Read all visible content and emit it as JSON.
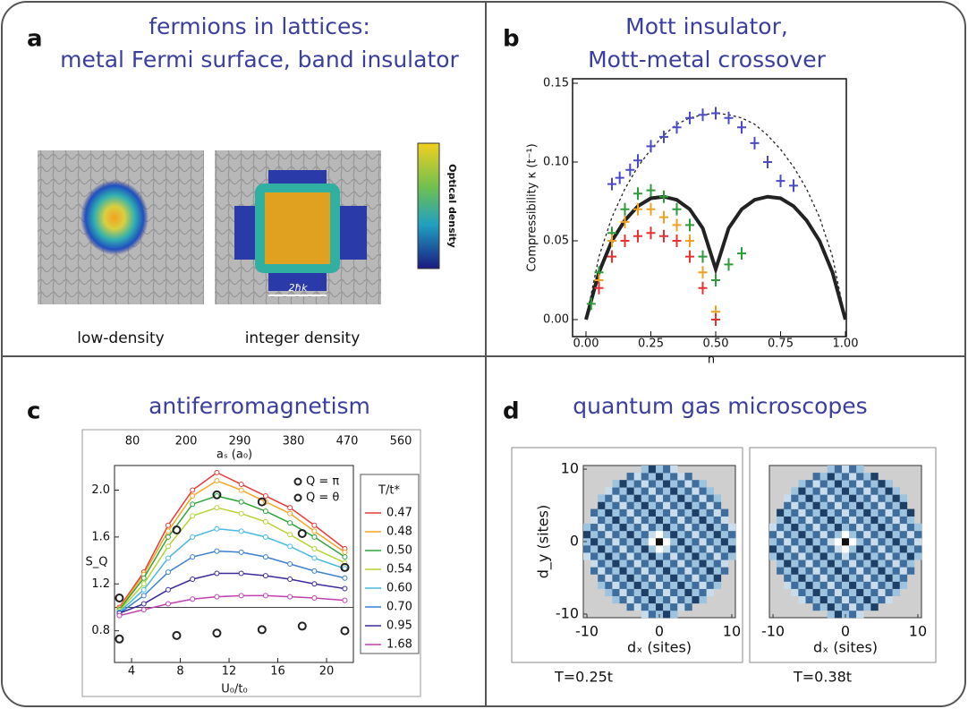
{
  "panels": [
    {
      "label": "a",
      "title": [
        "fermions in lattices:",
        "metal Fermi surface, band insulator"
      ],
      "images": [
        {
          "caption": "low-density"
        },
        {
          "caption": "integer density",
          "scale_label": "2ħk"
        }
      ],
      "colorbar_label": "Optical density"
    },
    {
      "label": "b",
      "title": [
        "Mott insulator,",
        "Mott-metal crossover"
      ],
      "chart_data": {
        "type": "line",
        "xlabel": "n",
        "ylabel": "Compressibility κ (t⁻¹)",
        "xlim": [
          0,
          1
        ],
        "ylim": [
          0,
          0.15
        ],
        "xticks": [
          {
            "value": 0,
            "label": "0.00"
          },
          {
            "value": 0.25,
            "label": "0.25"
          },
          {
            "value": 0.5,
            "label": "0.50"
          },
          {
            "value": 0.75,
            "label": "0.75"
          },
          {
            "value": 1,
            "label": "1.00"
          }
        ],
        "yticks": [
          {
            "value": 0,
            "label": "0.00"
          },
          {
            "value": 0.05,
            "label": "0.05"
          },
          {
            "value": 0.1,
            "label": "0.10"
          },
          {
            "value": 0.15,
            "label": "0.15"
          }
        ],
        "series": [
          {
            "style": "dashed",
            "color": "#222222",
            "x": [
              0,
              0.05,
              0.1,
              0.15,
              0.2,
              0.25,
              0.3,
              0.35,
              0.4,
              0.45,
              0.5,
              0.55,
              0.6,
              0.65,
              0.7,
              0.75,
              0.8,
              0.85,
              0.9,
              0.95,
              1
            ],
            "y": [
              0,
              0.04,
              0.065,
              0.083,
              0.097,
              0.108,
              0.117,
              0.124,
              0.128,
              0.13,
              0.131,
              0.13,
              0.128,
              0.124,
              0.117,
              0.108,
              0.097,
              0.083,
              0.065,
              0.04,
              0
            ]
          },
          {
            "style": "solid",
            "color": "#222222",
            "x": [
              0,
              0.05,
              0.1,
              0.15,
              0.2,
              0.25,
              0.3,
              0.35,
              0.4,
              0.45,
              0.5,
              0.55,
              0.6,
              0.65,
              0.7,
              0.75,
              0.8,
              0.85,
              0.9,
              0.95,
              1
            ],
            "y": [
              0,
              0.03,
              0.05,
              0.063,
              0.072,
              0.077,
              0.078,
              0.076,
              0.07,
              0.058,
              0.032,
              0.058,
              0.07,
              0.076,
              0.078,
              0.077,
              0.072,
              0.063,
              0.05,
              0.03,
              0
            ]
          },
          {
            "style": "markers",
            "color": "#4a4ac8",
            "x": [
              0.1,
              0.13,
              0.17,
              0.2,
              0.25,
              0.3,
              0.35,
              0.4,
              0.45,
              0.5,
              0.55,
              0.6,
              0.65,
              0.7,
              0.75,
              0.8
            ],
            "y": [
              0.086,
              0.09,
              0.095,
              0.101,
              0.11,
              0.116,
              0.122,
              0.128,
              0.13,
              0.131,
              0.128,
              0.122,
              0.112,
              0.1,
              0.088,
              0.085
            ]
          },
          {
            "style": "markers",
            "color": "#2e9a3a",
            "x": [
              0.02,
              0.05,
              0.1,
              0.15,
              0.2,
              0.25,
              0.3,
              0.35,
              0.4,
              0.45,
              0.5,
              0.55,
              0.6
            ],
            "y": [
              0.01,
              0.03,
              0.055,
              0.07,
              0.08,
              0.082,
              0.078,
              0.07,
              0.06,
              0.04,
              0.025,
              0.035,
              0.042
            ]
          },
          {
            "style": "markers",
            "color": "#f0a020",
            "x": [
              0.05,
              0.1,
              0.15,
              0.2,
              0.25,
              0.3,
              0.35,
              0.4,
              0.45,
              0.5
            ],
            "y": [
              0.025,
              0.05,
              0.062,
              0.07,
              0.07,
              0.065,
              0.06,
              0.05,
              0.03,
              0.005
            ]
          },
          {
            "style": "markers",
            "color": "#e83030",
            "x": [
              0.05,
              0.1,
              0.15,
              0.2,
              0.25,
              0.3,
              0.35,
              0.4,
              0.45,
              0.5
            ],
            "y": [
              0.02,
              0.04,
              0.05,
              0.053,
              0.055,
              0.053,
              0.05,
              0.04,
              0.02,
              0
            ]
          }
        ]
      }
    },
    {
      "label": "c",
      "title": "antiferromagnetism",
      "chart_data": {
        "type": "line",
        "xlabel": "U₀/t₀",
        "x2label": "aₛ (a₀)",
        "ylabel": "S_Q",
        "xlim": [
          2.6,
          22.2
        ],
        "ylim": [
          0.53,
          2.21
        ],
        "xticks": [
          4,
          8,
          12,
          16,
          20
        ],
        "yticks": [
          0.8,
          1.2,
          1.6,
          {
            "value": 2,
            "label": "2.0"
          }
        ],
        "x2ticks": [
          80,
          200,
          290,
          380,
          470,
          560
        ],
        "reference_line": 1,
        "legend_title": "T/t*",
        "x": [
          3,
          5,
          7,
          9,
          11,
          13,
          15,
          17,
          19,
          21.5
        ],
        "series": [
          {
            "name": "0.47",
            "color": "#e83a3a",
            "values": [
              1.0,
              1.3,
              1.7,
              2.0,
              2.15,
              2.05,
              1.95,
              1.85,
              1.7,
              1.5
            ]
          },
          {
            "name": "0.48",
            "color": "#f5a623",
            "values": [
              0.99,
              1.28,
              1.65,
              1.95,
              2.08,
              2.0,
              1.9,
              1.8,
              1.65,
              1.47
            ]
          },
          {
            "name": "0.50",
            "color": "#2ea33a",
            "values": [
              0.98,
              1.25,
              1.6,
              1.88,
              1.95,
              1.9,
              1.82,
              1.72,
              1.6,
              1.43
            ]
          },
          {
            "name": "0.54",
            "color": "#b5d334",
            "values": [
              0.97,
              1.2,
              1.52,
              1.78,
              1.85,
              1.8,
              1.73,
              1.62,
              1.5,
              1.38
            ]
          },
          {
            "name": "0.60",
            "color": "#47b8e0",
            "values": [
              0.96,
              1.15,
              1.42,
              1.6,
              1.67,
              1.65,
              1.6,
              1.52,
              1.42,
              1.33
            ]
          },
          {
            "name": "0.70",
            "color": "#3a7fd0",
            "values": [
              0.95,
              1.1,
              1.3,
              1.43,
              1.48,
              1.47,
              1.43,
              1.37,
              1.31,
              1.25
            ]
          },
          {
            "name": "0.95",
            "color": "#3a2a9a",
            "values": [
              0.95,
              1.03,
              1.15,
              1.24,
              1.29,
              1.29,
              1.27,
              1.24,
              1.2,
              1.16
            ]
          },
          {
            "name": "1.68",
            "color": "#c040b0",
            "values": [
              0.93,
              0.98,
              1.03,
              1.07,
              1.09,
              1.1,
              1.1,
              1.09,
              1.08,
              1.06
            ]
          }
        ],
        "points": [
          {
            "name": "Q = π",
            "x": [
              3,
              7.7,
              11,
              14.7,
              18,
              21.5
            ],
            "values": [
              1.08,
              1.66,
              1.96,
              1.9,
              1.63,
              1.34
            ]
          },
          {
            "name": "Q = θ",
            "x": [
              3,
              7.7,
              11,
              14.7,
              18,
              21.5
            ],
            "values": [
              0.73,
              0.76,
              0.78,
              0.81,
              0.84,
              0.8
            ]
          }
        ]
      }
    },
    {
      "label": "d",
      "title": "quantum gas microscopes",
      "maps": [
        {
          "xlim": [
            -10.5,
            10.5
          ],
          "ylim": [
            -10.5,
            10.5
          ],
          "xticks": [
            -10,
            0,
            10
          ],
          "yticks": [
            -10,
            0,
            10
          ],
          "xlabel": "dₓ (sites)",
          "ylabel": "d_y (sites)",
          "caption": "T=0.25t"
        },
        {
          "xlim": [
            -10.5,
            10.5
          ],
          "ylim": [
            -10.5,
            10.5
          ],
          "xticks": [
            -10,
            0,
            10
          ],
          "xlabel": "dₓ (sites)",
          "caption": "T=0.38t"
        }
      ]
    }
  ]
}
